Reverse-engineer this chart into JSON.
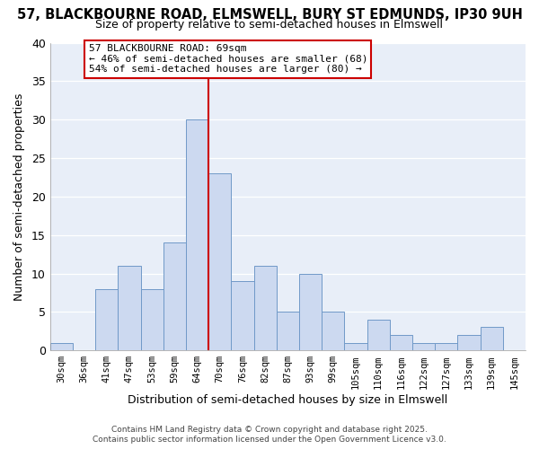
{
  "title_line1": "57, BLACKBOURNE ROAD, ELMSWELL, BURY ST EDMUNDS, IP30 9UH",
  "title_line2": "Size of property relative to semi-detached houses in Elmswell",
  "xlabel": "Distribution of semi-detached houses by size in Elmswell",
  "ylabel": "Number of semi-detached properties",
  "bar_labels": [
    "30sqm",
    "36sqm",
    "41sqm",
    "47sqm",
    "53sqm",
    "59sqm",
    "64sqm",
    "70sqm",
    "76sqm",
    "82sqm",
    "87sqm",
    "93sqm",
    "99sqm",
    "105sqm",
    "110sqm",
    "116sqm",
    "122sqm",
    "127sqm",
    "133sqm",
    "139sqm",
    "145sqm"
  ],
  "bar_values": [
    1,
    0,
    8,
    11,
    8,
    14,
    30,
    23,
    9,
    11,
    5,
    10,
    5,
    1,
    4,
    2,
    1,
    1,
    2,
    3,
    0
  ],
  "bar_color": "#ccd9f0",
  "bar_edge_color": "#7099c8",
  "vline_x_index": 6.5,
  "vline_color": "#cc0000",
  "annotation_text": "57 BLACKBOURNE ROAD: 69sqm\n← 46% of semi-detached houses are smaller (68)\n54% of semi-detached houses are larger (80) →",
  "annotation_box_color": "white",
  "annotation_box_edge_color": "#cc0000",
  "ylim": [
    0,
    40
  ],
  "yticks": [
    0,
    5,
    10,
    15,
    20,
    25,
    30,
    35,
    40
  ],
  "fig_bg_color": "#ffffff",
  "plot_bg_color": "#e8eef8",
  "grid_color": "#ffffff",
  "footer_line1": "Contains HM Land Registry data © Crown copyright and database right 2025.",
  "footer_line2": "Contains public sector information licensed under the Open Government Licence v3.0."
}
